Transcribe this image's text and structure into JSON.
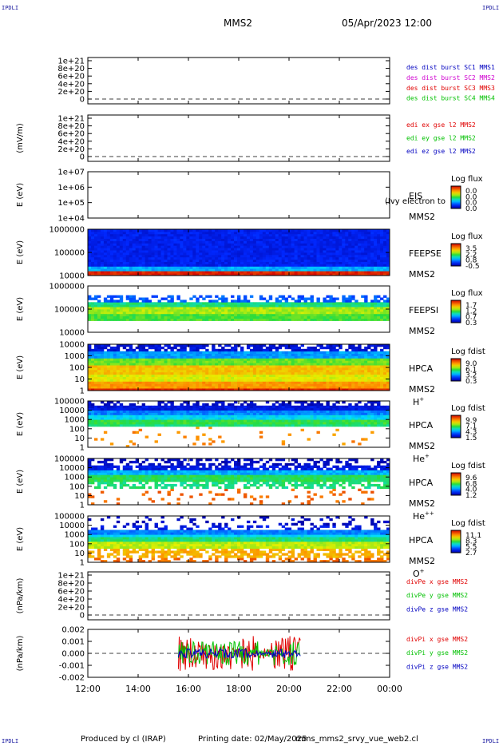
{
  "header": {
    "corner_label": "IPDLI",
    "title": "MMS2",
    "date": "05/Apr/2023 12:00"
  },
  "footer": {
    "produced_by": "Produced by cl (IRAP)",
    "printing_date": "Printing date: 02/May/2025",
    "filename": "mms_mms2_srvy_vue_web2.cl"
  },
  "colors": {
    "red": "#e00000",
    "green": "#00c000",
    "blue": "#0000c0",
    "magenta": "#d000d0"
  },
  "chart_data": {
    "type": "heatmap",
    "time_axis": {
      "ticks": [
        "12:00",
        "14:00",
        "16:00",
        "18:00",
        "20:00",
        "22:00",
        "00:00"
      ],
      "range_hours": [
        12,
        24
      ]
    },
    "panels": [
      {
        "id": "p1",
        "kind": "lines",
        "ylabel": "",
        "yticks": [
          "1e+21",
          "8e+20",
          "6e+20",
          "4e+20",
          "2e+20",
          "0"
        ],
        "legend": [
          {
            "text": "des dist burst SC1 MMS1",
            "color": "#0000c0"
          },
          {
            "text": "des dist burst SC2 MMS2",
            "color": "#d000d0"
          },
          {
            "text": "des dist burst SC3 MMS3",
            "color": "#e00000"
          },
          {
            "text": "des dist burst SC4 MMS4",
            "color": "#00c000"
          }
        ]
      },
      {
        "id": "p2",
        "kind": "lines",
        "ylabel": "(mV/m)",
        "yticks": [
          "1e+21",
          "8e+20",
          "6e+20",
          "4e+20",
          "2e+20",
          "0"
        ],
        "legend": [
          {
            "text": "edi ex gse l2 MMS2",
            "color": "#e00000"
          },
          {
            "text": "edi ey gse l2 MMS2",
            "color": "#00c000"
          },
          {
            "text": "edi ez gse l2 MMS2",
            "color": "#0000c0"
          }
        ]
      },
      {
        "id": "p3",
        "kind": "spectrogram",
        "ylabel": "E (eV)",
        "yticks": [
          "1e+07",
          "1e+06",
          "1e+05",
          "1e+04"
        ],
        "names": [
          "EIS",
          "MMS2"
        ],
        "overlay": "(Ivy electron to",
        "cbar_title": "Log flux",
        "cbar_ticks": [
          "0.0",
          "0.0",
          "0.0",
          "0.0"
        ],
        "fill": "none"
      },
      {
        "id": "p4",
        "kind": "spectrogram",
        "ylabel": "E (eV)",
        "yticks": [
          "1000000",
          "100000",
          "10000"
        ],
        "names": [
          "FEEPSE",
          "MMS2"
        ],
        "cbar_title": "Log flux",
        "cbar_ticks": [
          "3.5",
          "2.2",
          "0.8",
          "-0.5"
        ],
        "fill": "feepse"
      },
      {
        "id": "p5",
        "kind": "spectrogram",
        "ylabel": "E (eV)",
        "yticks": [
          "1000000",
          "100000",
          "10000"
        ],
        "names": [
          "FEEPSI",
          "MMS2"
        ],
        "cbar_title": "Log flux",
        "cbar_ticks": [
          "1.7",
          "1.2",
          "0.7",
          "0.3"
        ],
        "fill": "feepsi"
      },
      {
        "id": "p6",
        "kind": "spectrogram",
        "ylabel": "E (eV)",
        "yticks": [
          "10000",
          "1000",
          "100",
          "10",
          "1"
        ],
        "names": [
          "HPCA",
          "MMS2"
        ],
        "species": "H",
        "species_sup": "+",
        "cbar_title": "Log fdist",
        "cbar_ticks": [
          "9.0",
          "6.1",
          "3.2",
          "0.3"
        ],
        "fill": "hplus"
      },
      {
        "id": "p7",
        "kind": "spectrogram",
        "ylabel": "E (eV)",
        "yticks": [
          "100000",
          "10000",
          "1000",
          "100",
          "10",
          "1"
        ],
        "names": [
          "HPCA",
          "MMS2"
        ],
        "species": "He",
        "species_sup": "+",
        "cbar_title": "Log fdist",
        "cbar_ticks": [
          "9.9",
          "7.1",
          "4.3",
          "1.5"
        ],
        "fill": "heplus"
      },
      {
        "id": "p8",
        "kind": "spectrogram",
        "ylabel": "E (eV)",
        "yticks": [
          "100000",
          "10000",
          "1000",
          "100",
          "10",
          "1"
        ],
        "names": [
          "HPCA",
          "MMS2"
        ],
        "species": "He",
        "species_sup": "++",
        "cbar_title": "Log fdist",
        "cbar_ticks": [
          "9.6",
          "6.8",
          "4.0",
          "1.2"
        ],
        "fill": "hepp"
      },
      {
        "id": "p9",
        "kind": "spectrogram",
        "ylabel": "E (eV)",
        "yticks": [
          "100000",
          "10000",
          "1000",
          "100",
          "10",
          "1"
        ],
        "names": [
          "HPCA",
          "MMS2"
        ],
        "species": "O",
        "species_sup": "+",
        "cbar_title": "Log fdist",
        "cbar_ticks": [
          "11.1",
          "8.3",
          "5.5",
          "2.7"
        ],
        "fill": "oplus"
      },
      {
        "id": "p10",
        "kind": "lines",
        "ylabel": "(nPa/km)",
        "yticks": [
          "1e+21",
          "8e+20",
          "6e+20",
          "4e+20",
          "2e+20",
          "0"
        ],
        "legend": [
          {
            "text": "divPe x gse MMS2",
            "color": "#e00000"
          },
          {
            "text": "divPe y gse MMS2",
            "color": "#00c000"
          },
          {
            "text": "divPe z gse MMS2",
            "color": "#0000c0"
          }
        ]
      },
      {
        "id": "p11",
        "kind": "divpi",
        "ylabel": "(nPa/km)",
        "yticks": [
          "0.002",
          "0.001",
          "0.000",
          "-0.001",
          "-0.002"
        ],
        "data_interval_hours": [
          15.6,
          20.45
        ],
        "legend": [
          {
            "text": "divPi x gse MMS2",
            "color": "#e00000"
          },
          {
            "text": "divPi y gse MMS2",
            "color": "#00c000"
          },
          {
            "text": "divPi z gse MMS2",
            "color": "#0000c0"
          }
        ]
      }
    ]
  }
}
